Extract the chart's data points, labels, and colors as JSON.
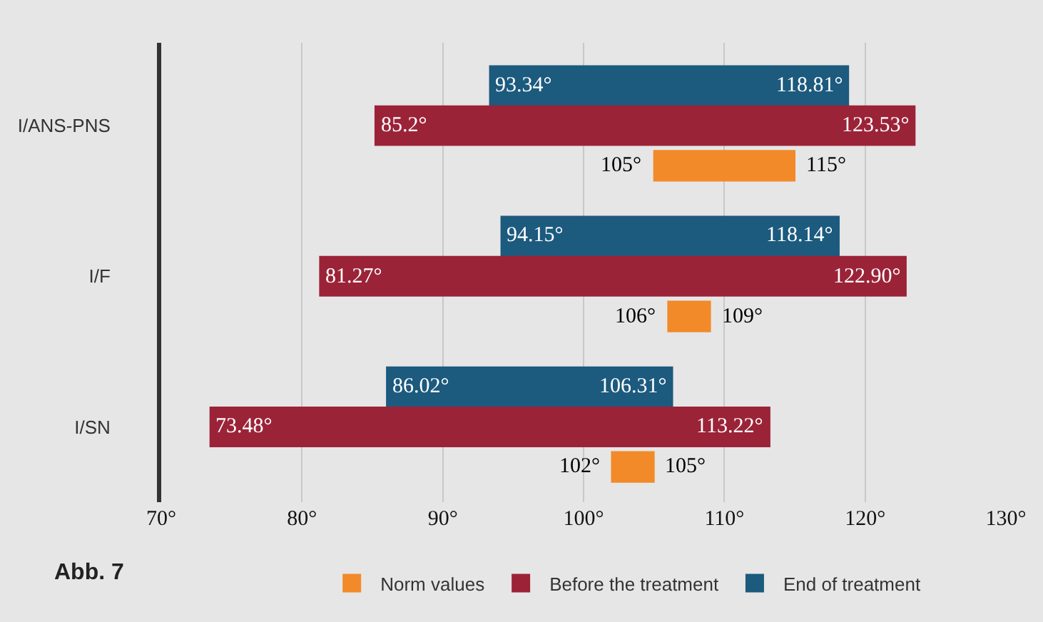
{
  "chart_data": {
    "type": "bar",
    "orientation": "horizontal",
    "categories": [
      "I/ANS-PNS",
      "I/F",
      "I/SN"
    ],
    "series": [
      {
        "name": "End of treatment",
        "color": "#1c5a7e",
        "base": [
          93.34,
          94.15,
          86.02
        ],
        "values": [
          25.47,
          23.99,
          20.29
        ]
      },
      {
        "name": "Before the treatment",
        "color": "#9b2338",
        "base": [
          85.2,
          81.27,
          73.48
        ],
        "values": [
          38.33,
          41.63,
          39.74
        ]
      },
      {
        "name": "Norm values",
        "color": "#f28a2a",
        "base": [
          105,
          106,
          102
        ],
        "values": [
          10,
          3,
          3
        ]
      }
    ],
    "xlim": [
      70,
      130
    ],
    "xticks": [
      {
        "value": 70,
        "label": "70°"
      },
      {
        "value": 80,
        "label": "80°"
      },
      {
        "value": 90,
        "label": "90°"
      },
      {
        "value": 100,
        "label": "100°"
      },
      {
        "value": 110,
        "label": "110°"
      },
      {
        "value": 120,
        "label": "120°"
      },
      {
        "value": 130,
        "label": "130°"
      }
    ],
    "grid": "x",
    "legend": "bottom",
    "annotations": [
      "93.34°",
      "118.81°",
      "85.2°",
      "123.53°",
      "105°",
      "115°",
      "94.15°",
      "118.14°",
      "81.27°",
      "122.90°",
      "106°",
      "109°",
      "86.02°",
      "106.31°",
      "73.48°",
      "113.22°",
      "102°",
      "105°",
      "Abb. 7"
    ]
  }
}
